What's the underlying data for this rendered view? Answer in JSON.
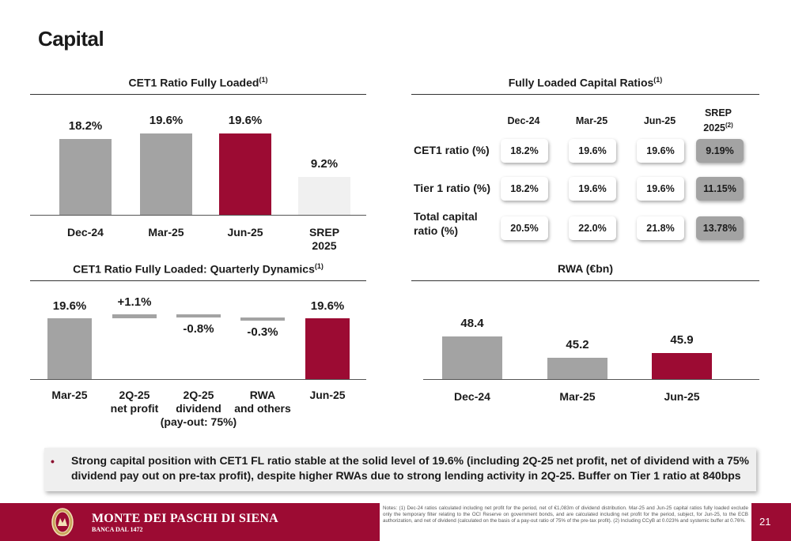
{
  "page": {
    "title": "Capital",
    "page_number": "21"
  },
  "colors": {
    "burgundy": "#9c0b33",
    "grey": "#a3a3a3",
    "light_grey": "#f0f0f0"
  },
  "chart_data": [
    {
      "id": "cet1",
      "type": "bar",
      "title": "CET1 Ratio Fully Loaded",
      "title_sup": "(1)",
      "categories": [
        "Dec-24",
        "Mar-25",
        "Jun-25",
        "SREP 2025"
      ],
      "values": [
        18.2,
        19.6,
        19.6,
        9.2
      ],
      "labels": [
        "18.2%",
        "19.6%",
        "19.6%",
        "9.2%"
      ],
      "colors": [
        "#a3a3a3",
        "#a3a3a3",
        "#9c0b33",
        "#f0f0f0"
      ],
      "ylim": [
        0,
        20
      ]
    },
    {
      "id": "waterfall",
      "type": "bar",
      "title": "CET1 Ratio Fully Loaded: Quarterly Dynamics",
      "title_sup": "(1)",
      "categories": [
        "Mar-25",
        "2Q-25 net profit",
        "2Q-25 dividend (pay-out: 75%)",
        "RWA and others",
        "Jun-25"
      ],
      "category_lines": [
        [
          "Mar-25"
        ],
        [
          "2Q-25",
          "net profit"
        ],
        [
          "2Q-25",
          "dividend",
          "(pay-out: 75%)"
        ],
        [
          "RWA",
          "and others"
        ],
        [
          "Jun-25"
        ]
      ],
      "values": [
        19.6,
        1.1,
        -0.8,
        -0.3,
        19.6
      ],
      "labels": [
        "19.6%",
        "+1.1%",
        "-0.8%",
        "-0.3%",
        "19.6%"
      ],
      "colors": [
        "#a3a3a3",
        "#a3a3a3",
        "#a3a3a3",
        "#a3a3a3",
        "#9c0b33"
      ]
    },
    {
      "id": "rwa",
      "type": "bar",
      "title": "RWA (€bn)",
      "categories": [
        "Dec-24",
        "Mar-25",
        "Jun-25"
      ],
      "values": [
        48.4,
        45.2,
        45.9
      ],
      "labels": [
        "48.4",
        "45.2",
        "45.9"
      ],
      "colors": [
        "#a3a3a3",
        "#a3a3a3",
        "#9c0b33"
      ]
    },
    {
      "id": "ratios",
      "type": "table",
      "title": "Fully Loaded Capital Ratios",
      "title_sup": "(1)",
      "columns": [
        "Dec-24",
        "Mar-25",
        "Jun-25",
        "SREP 2025"
      ],
      "srep_sup": "(2)",
      "rows": [
        {
          "label": "CET1 ratio (%)",
          "values": [
            "18.2%",
            "19.6%",
            "19.6%",
            "9.19%"
          ]
        },
        {
          "label": "Tier 1 ratio (%)",
          "values": [
            "18.2%",
            "19.6%",
            "19.6%",
            "11.15%"
          ]
        },
        {
          "label": "Total capital ratio (%)",
          "values": [
            "20.5%",
            "22.0%",
            "21.8%",
            "13.78%"
          ]
        }
      ]
    }
  ],
  "summary": {
    "bullet": "•",
    "text": "Strong capital position with CET1 FL ratio stable at the solid level of 19.6% (including 2Q-25 net profit, net of dividend with a 75% dividend pay out on pre-tax profit), despite higher RWAs due to strong lending activity in 2Q-25.  Buffer on Tier 1 ratio at 840bps"
  },
  "footer": {
    "bank_name": "MONTE DEI PASCHI DI SIENA",
    "bank_sub": "BANCA DAL 1472",
    "notes": "Notes: (1) Dec-24 ratios calculated including net profit for the period, net of €1,083m of dividend distribution. Mar-25 and Jun-25 capital ratios fully loaded exclude only the temporary filter relating to the OCI Reserve on government bonds, and are calculated including net profit for the period, subject, for Jun-25, to the ECB authorization, and net of dividend (calculated on the basis of a pay-out ratio of 75% of the pre-tax profit). (2) Including CCyB at 0.023% and systemic buffer at  0.76%."
  }
}
